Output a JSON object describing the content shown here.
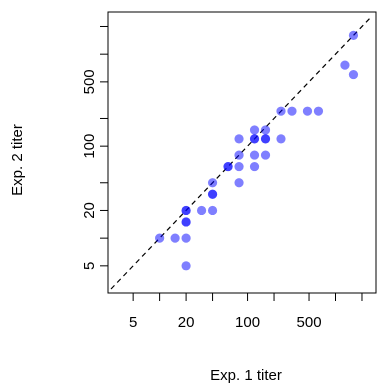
{
  "chart_data": {
    "type": "scatter",
    "title": "",
    "xlabel": "Exp. 1 titer",
    "ylabel": "Exp. 2 titer",
    "log_scale": {
      "x": true,
      "y": true
    },
    "xlim": [
      2.8,
      2600
    ],
    "ylim": [
      2.8,
      2600
    ],
    "x_ticks": [
      5,
      10,
      20,
      40,
      100,
      200,
      500,
      1000,
      2000
    ],
    "x_tick_labels": [
      "5",
      "",
      "20",
      "",
      "100",
      "",
      "500",
      "",
      ""
    ],
    "y_ticks": [
      5,
      10,
      20,
      40,
      100,
      200,
      500,
      1000,
      2000
    ],
    "y_tick_labels": [
      "5",
      "",
      "20",
      "",
      "100",
      "",
      "500",
      "",
      ""
    ],
    "reference_line": {
      "type": "identity",
      "style": "dashed",
      "color": "#000000"
    },
    "grid": false,
    "legend": "none",
    "point_color": "#0000ff",
    "point_alpha": 0.5,
    "points": [
      {
        "x": 10,
        "y": 10
      },
      {
        "x": 15,
        "y": 10
      },
      {
        "x": 20,
        "y": 20
      },
      {
        "x": 20,
        "y": 20
      },
      {
        "x": 20,
        "y": 10
      },
      {
        "x": 20,
        "y": 15
      },
      {
        "x": 20,
        "y": 15
      },
      {
        "x": 20,
        "y": 5
      },
      {
        "x": 30,
        "y": 20
      },
      {
        "x": 40,
        "y": 20
      },
      {
        "x": 40,
        "y": 30
      },
      {
        "x": 40,
        "y": 40
      },
      {
        "x": 40,
        "y": 30
      },
      {
        "x": 60,
        "y": 60
      },
      {
        "x": 60,
        "y": 60
      },
      {
        "x": 80,
        "y": 80
      },
      {
        "x": 80,
        "y": 40
      },
      {
        "x": 80,
        "y": 120
      },
      {
        "x": 80,
        "y": 60
      },
      {
        "x": 120,
        "y": 150
      },
      {
        "x": 120,
        "y": 120
      },
      {
        "x": 120,
        "y": 80
      },
      {
        "x": 120,
        "y": 60
      },
      {
        "x": 120,
        "y": 120
      },
      {
        "x": 160,
        "y": 150
      },
      {
        "x": 160,
        "y": 120
      },
      {
        "x": 160,
        "y": 120
      },
      {
        "x": 160,
        "y": 80
      },
      {
        "x": 240,
        "y": 240
      },
      {
        "x": 240,
        "y": 120
      },
      {
        "x": 320,
        "y": 240
      },
      {
        "x": 480,
        "y": 240
      },
      {
        "x": 640,
        "y": 240
      },
      {
        "x": 1280,
        "y": 760
      },
      {
        "x": 1600,
        "y": 600
      },
      {
        "x": 1600,
        "y": 1600
      }
    ]
  }
}
